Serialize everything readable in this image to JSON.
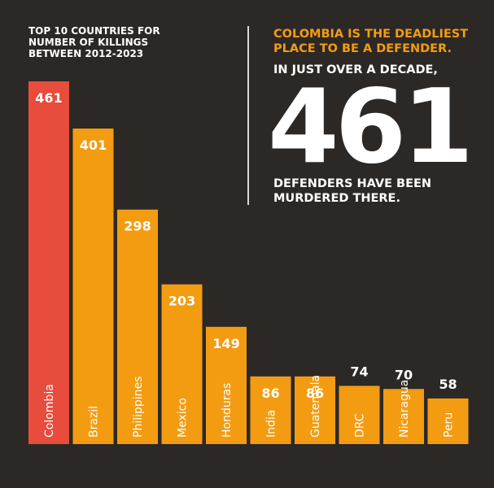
{
  "colors": {
    "background": "#2b2826",
    "highlight_bar": "#e74c3c",
    "bar": "#f39c12",
    "headline": "#f39c12",
    "text": "#ffffff"
  },
  "title_lines": [
    "TOP 10 COUNTRIES FOR",
    "NUMBER OF KILLINGS",
    "BETWEEN 2012-2023"
  ],
  "callout": {
    "headline_lines": [
      "COLOMBIA IS THE DEADLIEST",
      "PLACE TO BE A DEFENDER."
    ],
    "intro": "IN JUST OVER A DECADE,",
    "big_number": "461",
    "outro_lines": [
      "DEFENDERS HAVE BEEN",
      "MURDERED THERE."
    ]
  },
  "chart_data": {
    "type": "bar",
    "title": "TOP 10 COUNTRIES FOR NUMBER OF KILLINGS BETWEEN 2012-2023",
    "categories": [
      "Colombia",
      "Brazil",
      "Philippines",
      "Mexico",
      "Honduras",
      "India",
      "Guatemala",
      "DRC",
      "Nicaragua",
      "Peru"
    ],
    "values": [
      461,
      401,
      298,
      203,
      149,
      86,
      86,
      74,
      70,
      58
    ],
    "highlight_index": 0,
    "ylim": [
      0,
      461
    ],
    "grid": false,
    "legend": "none"
  }
}
